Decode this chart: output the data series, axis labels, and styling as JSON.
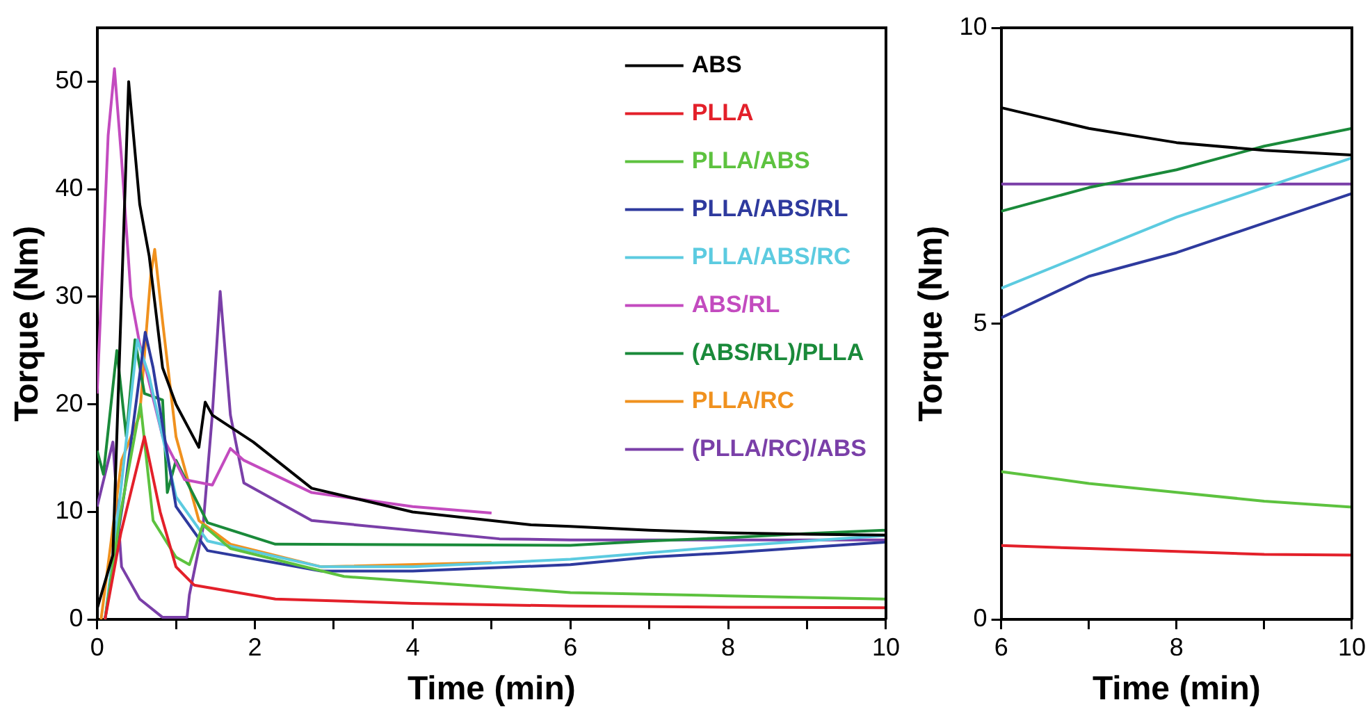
{
  "chart_data": [
    {
      "type": "line",
      "xlabel": "Time (min)",
      "ylabel": "Torque (Nm)",
      "xlim": [
        0,
        10
      ],
      "ylim": [
        0,
        55
      ],
      "xticks": [
        0,
        {
          "value": 1,
          "label": null
        },
        2,
        {
          "value": 3,
          "label": null
        },
        4,
        {
          "value": 5,
          "label": null
        },
        6,
        {
          "value": 7,
          "label": null
        },
        8,
        {
          "value": 9,
          "label": null
        },
        10
      ],
      "yticks": [
        0,
        10,
        20,
        30,
        40,
        50
      ],
      "grid": false,
      "legend": "top right",
      "marker": "none",
      "line_style": "solid",
      "series": [
        {
          "name": "ABS",
          "color": "#000000",
          "x": [
            0,
            0.2,
            0.4,
            0.54,
            0.66,
            0.83,
            1.0,
            1.29,
            1.37,
            1.46,
            1.98,
            2.72,
            4.0,
            5.5,
            6,
            7,
            8,
            9,
            10
          ],
          "values": [
            1,
            6,
            50,
            38.6,
            33.8,
            23.4,
            20,
            16,
            20.2,
            19,
            16.5,
            12.2,
            10,
            8.8,
            8.65,
            8.3,
            8.06,
            7.93,
            7.85
          ]
        },
        {
          "name": "PLLA",
          "color": "#e3202a",
          "x": [
            0.1,
            0.3,
            0.6,
            0.8,
            1.0,
            1.23,
            2.26,
            4,
            6,
            8,
            10
          ],
          "values": [
            0,
            8,
            17,
            10,
            4.9,
            3.2,
            1.9,
            1.5,
            1.25,
            1.15,
            1.1
          ]
        },
        {
          "name": "PLLA/ABS",
          "color": "#5dc23f",
          "x": [
            0.1,
            0.3,
            0.55,
            0.71,
            1.0,
            1.17,
            1.34,
            1.69,
            3.13,
            6,
            8,
            10
          ],
          "values": [
            0,
            10,
            20,
            9.2,
            5.8,
            5.1,
            8.8,
            6.6,
            4,
            2.5,
            2.2,
            1.9
          ]
        },
        {
          "name": "PLLA/ABS/RL",
          "color": "#2e3a9e",
          "x": [
            0.1,
            0.35,
            0.61,
            0.71,
            1.0,
            1.4,
            2.84,
            4,
            6,
            7,
            8,
            9,
            10
          ],
          "values": [
            0,
            12,
            26.7,
            23.4,
            10.5,
            6.4,
            4.5,
            4.5,
            5.1,
            5.8,
            6.2,
            6.7,
            7.2
          ]
        },
        {
          "name": "PLLA/ABS/RC",
          "color": "#5ccbe0",
          "x": [
            0.1,
            0.3,
            0.51,
            0.66,
            1.0,
            1.4,
            2.84,
            4,
            6,
            7,
            8,
            9,
            10
          ],
          "values": [
            0,
            12,
            26,
            22.6,
            11.4,
            7.3,
            4.9,
            4.9,
            5.6,
            6.2,
            6.8,
            7.3,
            7.8
          ]
        },
        {
          "name": "ABS/RL",
          "color": "#c34bbf",
          "x": [
            0,
            0.14,
            0.22,
            0.31,
            0.43,
            0.54,
            0.83,
            1.11,
            1.46,
            1.69,
            1.86,
            2.72,
            4.0,
            5.0
          ],
          "values": [
            21,
            45,
            51.2,
            42.8,
            30,
            25.6,
            17,
            13,
            12.5,
            15.9,
            14.8,
            11.8,
            10.5,
            9.9
          ]
        },
        {
          "name": "(ABS/RL)/PLLA",
          "color": "#1a8a3a",
          "x": [
            0,
            0.08,
            0.25,
            0.37,
            0.48,
            0.6,
            0.83,
            0.89,
            1.0,
            1.4,
            2.26,
            6,
            7,
            8,
            9,
            10
          ],
          "values": [
            15.7,
            13.5,
            25,
            17,
            26,
            21,
            20.4,
            11.8,
            14.8,
            9,
            7,
            6.9,
            7.3,
            7.6,
            8,
            8.3
          ]
        },
        {
          "name": "PLLA/RC",
          "color": "#f0911e",
          "x": [
            0.05,
            0.31,
            0.54,
            0.68,
            0.73,
            0.83,
            1.0,
            1.29,
            1.69,
            2.84,
            5.0
          ],
          "values": [
            0,
            14.8,
            19,
            32,
            34.4,
            27.7,
            17,
            9.2,
            7,
            4.9,
            5.3
          ]
        },
        {
          "name": "(PLLA/RC)/ABS",
          "color": "#7a3fa8",
          "x": [
            0,
            0.2,
            0.31,
            0.54,
            0.83,
            1.14,
            1.17,
            1.34,
            1.46,
            1.56,
            1.69,
            1.86,
            2.72,
            5.1,
            6,
            8,
            10
          ],
          "values": [
            10.5,
            16.5,
            4.9,
            1.9,
            0.2,
            0.2,
            2.3,
            8.4,
            19,
            30.5,
            19,
            12.7,
            9.2,
            7.5,
            7.4,
            7.4,
            7.4
          ]
        }
      ]
    },
    {
      "type": "line",
      "xlabel": "Time (min)",
      "ylabel": "Torque (Nm)",
      "xlim": [
        6,
        10
      ],
      "ylim": [
        0,
        10
      ],
      "xticks": [
        6,
        {
          "value": 7,
          "label": null
        },
        8,
        {
          "value": 9,
          "label": null
        },
        10
      ],
      "yticks": [
        0,
        5,
        10
      ],
      "grid": false,
      "marker": "none",
      "line_style": "solid",
      "series": [
        {
          "color": "#000000",
          "x": [
            6,
            7,
            8,
            9,
            10
          ],
          "values": [
            8.65,
            8.3,
            8.06,
            7.93,
            7.85
          ]
        },
        {
          "color": "#e3202a",
          "x": [
            6,
            7,
            8,
            9,
            10
          ],
          "values": [
            1.25,
            1.2,
            1.15,
            1.1,
            1.09
          ]
        },
        {
          "color": "#5dc23f",
          "x": [
            6,
            7,
            8,
            9,
            10
          ],
          "values": [
            2.5,
            2.3,
            2.15,
            2.0,
            1.9
          ]
        },
        {
          "color": "#2e3a9e",
          "x": [
            6,
            7,
            8,
            9,
            10
          ],
          "values": [
            5.1,
            5.8,
            6.2,
            6.7,
            7.2
          ]
        },
        {
          "color": "#5ccbe0",
          "x": [
            6,
            7,
            8,
            9,
            10
          ],
          "values": [
            5.6,
            6.2,
            6.8,
            7.3,
            7.8
          ]
        },
        {
          "color": "#1a8a3a",
          "x": [
            6,
            7,
            8,
            9,
            10
          ],
          "values": [
            6.9,
            7.3,
            7.6,
            8.0,
            8.3
          ]
        },
        {
          "color": "#7a3fa8",
          "x": [
            6,
            7,
            8,
            9,
            10
          ],
          "values": [
            7.36,
            7.36,
            7.36,
            7.36,
            7.36
          ]
        }
      ]
    }
  ]
}
